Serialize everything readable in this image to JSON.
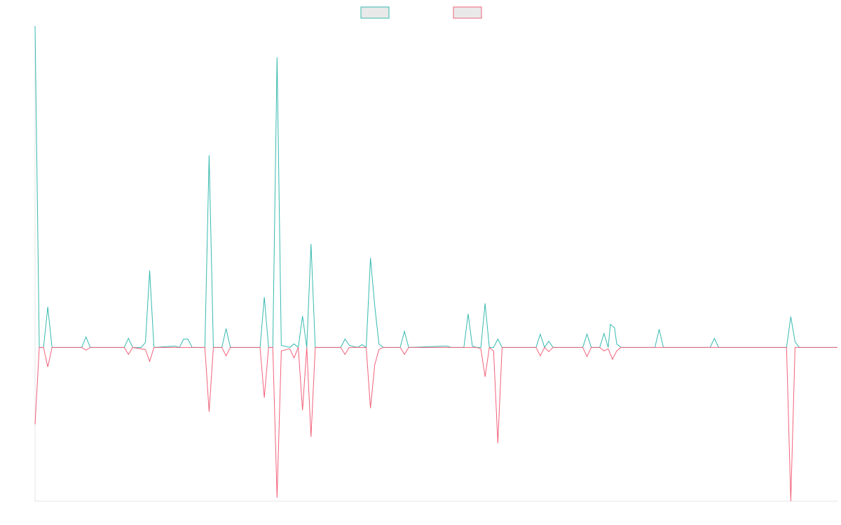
{
  "chart_data": {
    "type": "line",
    "title": "",
    "xlabel": "",
    "ylabel": "",
    "grid": false,
    "legend_position": "top",
    "ylim": [
      -220,
      460
    ],
    "x_count": 190,
    "series": [
      {
        "name": "",
        "color": "#36b9b0",
        "fill": "rgba(224,224,224,0.7)",
        "values": [
          {
            "i": 0,
            "v": 460
          },
          {
            "i": 1,
            "v": 0
          },
          {
            "i": 2,
            "v": 0
          },
          {
            "i": 3,
            "v": 58
          },
          {
            "i": 4,
            "v": 0
          },
          {
            "i": 11,
            "v": 0
          },
          {
            "i": 12,
            "v": 15
          },
          {
            "i": 13,
            "v": 0
          },
          {
            "i": 21,
            "v": 0
          },
          {
            "i": 22,
            "v": 13
          },
          {
            "i": 23,
            "v": 0
          },
          {
            "i": 25,
            "v": 0
          },
          {
            "i": 26,
            "v": 7
          },
          {
            "i": 27,
            "v": 110
          },
          {
            "i": 28,
            "v": 0
          },
          {
            "i": 33,
            "v": 2
          },
          {
            "i": 34,
            "v": 0
          },
          {
            "i": 35,
            "v": 12
          },
          {
            "i": 36,
            "v": 12
          },
          {
            "i": 37,
            "v": 0
          },
          {
            "i": 40,
            "v": 0
          },
          {
            "i": 41,
            "v": 275
          },
          {
            "i": 42,
            "v": 0
          },
          {
            "i": 44,
            "v": 0
          },
          {
            "i": 45,
            "v": 27
          },
          {
            "i": 46,
            "v": 0
          },
          {
            "i": 53,
            "v": 0
          },
          {
            "i": 54,
            "v": 72
          },
          {
            "i": 55,
            "v": 0
          },
          {
            "i": 56,
            "v": 0
          },
          {
            "i": 57,
            "v": 415
          },
          {
            "i": 58,
            "v": 3
          },
          {
            "i": 60,
            "v": 0
          },
          {
            "i": 61,
            "v": 5
          },
          {
            "i": 62,
            "v": 0
          },
          {
            "i": 63,
            "v": 45
          },
          {
            "i": 64,
            "v": 0
          },
          {
            "i": 65,
            "v": 148
          },
          {
            "i": 66,
            "v": 0
          },
          {
            "i": 72,
            "v": 0
          },
          {
            "i": 73,
            "v": 12
          },
          {
            "i": 74,
            "v": 3
          },
          {
            "i": 76,
            "v": 0
          },
          {
            "i": 77,
            "v": 4
          },
          {
            "i": 78,
            "v": 0
          },
          {
            "i": 79,
            "v": 128
          },
          {
            "i": 80,
            "v": 60
          },
          {
            "i": 81,
            "v": 5
          },
          {
            "i": 82,
            "v": 0
          },
          {
            "i": 86,
            "v": 0
          },
          {
            "i": 87,
            "v": 23
          },
          {
            "i": 88,
            "v": 0
          },
          {
            "i": 97,
            "v": 2
          },
          {
            "i": 98,
            "v": 0
          },
          {
            "i": 101,
            "v": 0
          },
          {
            "i": 102,
            "v": 48
          },
          {
            "i": 103,
            "v": 2
          },
          {
            "i": 104,
            "v": 0
          },
          {
            "i": 105,
            "v": 0
          },
          {
            "i": 106,
            "v": 63
          },
          {
            "i": 107,
            "v": 0
          },
          {
            "i": 108,
            "v": 0
          },
          {
            "i": 109,
            "v": 12
          },
          {
            "i": 110,
            "v": 0
          },
          {
            "i": 118,
            "v": 0
          },
          {
            "i": 119,
            "v": 19
          },
          {
            "i": 120,
            "v": 0
          },
          {
            "i": 121,
            "v": 9
          },
          {
            "i": 122,
            "v": 0
          },
          {
            "i": 129,
            "v": 0
          },
          {
            "i": 130,
            "v": 19
          },
          {
            "i": 131,
            "v": 0
          },
          {
            "i": 133,
            "v": 0
          },
          {
            "i": 134,
            "v": 20
          },
          {
            "i": 135,
            "v": 0
          },
          {
            "i": 135.5,
            "v": 33
          },
          {
            "i": 136.5,
            "v": 28
          },
          {
            "i": 137,
            "v": 5
          },
          {
            "i": 138,
            "v": 0
          },
          {
            "i": 146,
            "v": 0
          },
          {
            "i": 147,
            "v": 26
          },
          {
            "i": 148,
            "v": 0
          },
          {
            "i": 159,
            "v": 0
          },
          {
            "i": 160,
            "v": 13
          },
          {
            "i": 161,
            "v": 0
          },
          {
            "i": 177,
            "v": 0
          },
          {
            "i": 178,
            "v": 44
          },
          {
            "i": 179,
            "v": 8
          },
          {
            "i": 180,
            "v": 0
          },
          {
            "i": 189,
            "v": 0
          }
        ]
      },
      {
        "name": "",
        "color": "#f2617a",
        "fill": "rgba(224,224,224,0.7)",
        "values": [
          {
            "i": 0,
            "v": -110
          },
          {
            "i": 1,
            "v": 0
          },
          {
            "i": 2,
            "v": 0
          },
          {
            "i": 3,
            "v": -28
          },
          {
            "i": 4,
            "v": 0
          },
          {
            "i": 11,
            "v": 0
          },
          {
            "i": 12,
            "v": -4
          },
          {
            "i": 13,
            "v": 0
          },
          {
            "i": 21,
            "v": 0
          },
          {
            "i": 22,
            "v": -10
          },
          {
            "i": 23,
            "v": 0
          },
          {
            "i": 26,
            "v": -3
          },
          {
            "i": 27,
            "v": -20
          },
          {
            "i": 28,
            "v": 0
          },
          {
            "i": 40,
            "v": 0
          },
          {
            "i": 41,
            "v": -92
          },
          {
            "i": 42,
            "v": 0
          },
          {
            "i": 44,
            "v": 0
          },
          {
            "i": 45,
            "v": -12
          },
          {
            "i": 46,
            "v": 0
          },
          {
            "i": 53,
            "v": 0
          },
          {
            "i": 54,
            "v": -72
          },
          {
            "i": 55,
            "v": 0
          },
          {
            "i": 56,
            "v": 0
          },
          {
            "i": 57,
            "v": -215
          },
          {
            "i": 58,
            "v": -5
          },
          {
            "i": 60,
            "v": -2
          },
          {
            "i": 61,
            "v": -15
          },
          {
            "i": 62,
            "v": 0
          },
          {
            "i": 63,
            "v": -90
          },
          {
            "i": 64,
            "v": 0
          },
          {
            "i": 65,
            "v": -128
          },
          {
            "i": 66,
            "v": 0
          },
          {
            "i": 72,
            "v": 0
          },
          {
            "i": 73,
            "v": -10
          },
          {
            "i": 74,
            "v": 0
          },
          {
            "i": 78,
            "v": 0
          },
          {
            "i": 79,
            "v": -87
          },
          {
            "i": 80,
            "v": -25
          },
          {
            "i": 81,
            "v": -3
          },
          {
            "i": 82,
            "v": 0
          },
          {
            "i": 86,
            "v": 0
          },
          {
            "i": 87,
            "v": -10
          },
          {
            "i": 88,
            "v": 0
          },
          {
            "i": 104,
            "v": 0
          },
          {
            "i": 105,
            "v": -2
          },
          {
            "i": 106,
            "v": -42
          },
          {
            "i": 107,
            "v": 0
          },
          {
            "i": 108,
            "v": -5
          },
          {
            "i": 109,
            "v": -137
          },
          {
            "i": 110,
            "v": 0
          },
          {
            "i": 118,
            "v": 0
          },
          {
            "i": 119,
            "v": -12
          },
          {
            "i": 120,
            "v": 0
          },
          {
            "i": 121,
            "v": -6
          },
          {
            "i": 122,
            "v": 0
          },
          {
            "i": 129,
            "v": 0
          },
          {
            "i": 130,
            "v": -13
          },
          {
            "i": 131,
            "v": 0
          },
          {
            "i": 133,
            "v": 0
          },
          {
            "i": 134,
            "v": -5
          },
          {
            "i": 135,
            "v": -2
          },
          {
            "i": 136,
            "v": -17
          },
          {
            "i": 137,
            "v": -5
          },
          {
            "i": 138,
            "v": 0
          },
          {
            "i": 177,
            "v": 0
          },
          {
            "i": 178,
            "v": -220
          },
          {
            "i": 179,
            "v": 0
          },
          {
            "i": 189,
            "v": 0
          }
        ]
      }
    ]
  }
}
